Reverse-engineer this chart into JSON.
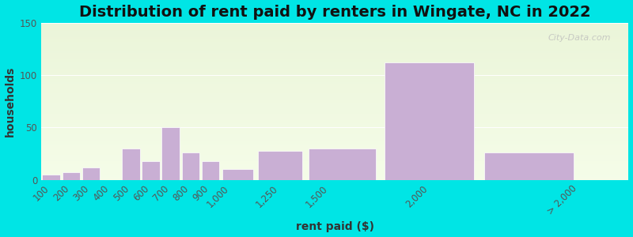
{
  "title": "Distribution of rent paid by renters in Wingate, NC in 2022",
  "xlabel": "rent paid ($)",
  "ylabel": "households",
  "bar_color": "#c9afd4",
  "bar_edgecolor": "#c9afd4",
  "background_outer": "#00e5e5",
  "ylim": [
    0,
    150
  ],
  "yticks": [
    0,
    50,
    100,
    150
  ],
  "bin_edges": [
    50,
    150,
    250,
    350,
    450,
    550,
    650,
    750,
    850,
    950,
    1125,
    1375,
    1750,
    2250,
    2750
  ],
  "bin_centers": [
    100,
    200,
    300,
    400,
    500,
    600,
    700,
    800,
    900,
    1000,
    1250,
    1500,
    2000,
    2750
  ],
  "tick_labels": [
    "100",
    "200",
    "300",
    "400",
    "500",
    "600",
    "700",
    "800",
    "900",
    "1,000",
    "1,250",
    "1,500",
    "2,000",
    "> 2,000"
  ],
  "values": [
    5,
    7,
    12,
    0,
    30,
    18,
    50,
    26,
    18,
    10,
    28,
    30,
    112,
    26
  ],
  "title_fontsize": 14,
  "axis_label_fontsize": 10,
  "tick_fontsize": 8.5,
  "watermark_text": "City-Data.com"
}
